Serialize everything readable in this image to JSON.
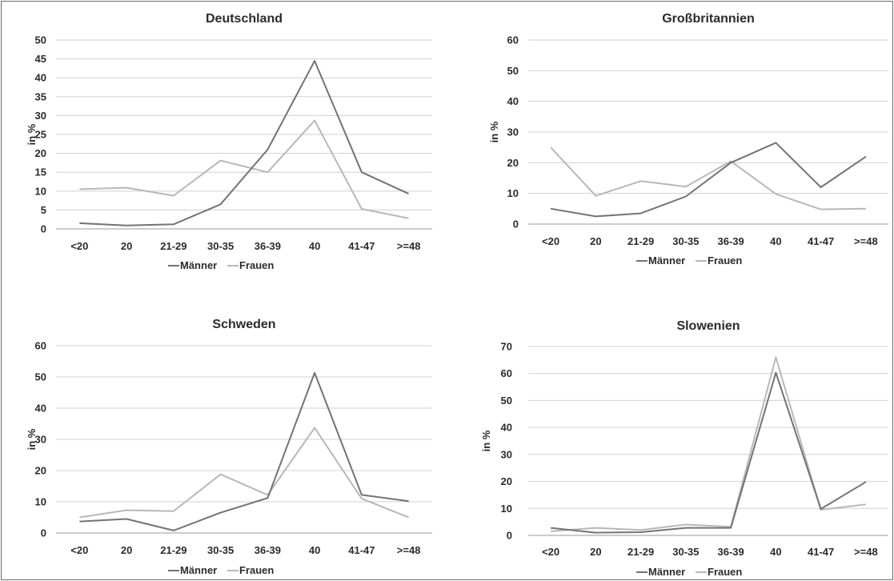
{
  "colors": {
    "maenner": "#737373",
    "frauen": "#b8b8b8",
    "grid": "#d0d0d0"
  },
  "chart_data": [
    {
      "type": "line",
      "title": "Deutschland",
      "ylabel": "in %",
      "categories": [
        "<20",
        "20",
        "21-29",
        "30-35",
        "36-39",
        "40",
        "41-47",
        ">=48"
      ],
      "ylim": [
        0,
        50
      ],
      "yticks": [
        "0",
        "5",
        "10",
        "15",
        "20",
        "25",
        "30",
        "35",
        "40",
        "45",
        "50"
      ],
      "legend": "bottom",
      "series": [
        {
          "name": "Männer",
          "values": [
            1.5,
            0.9,
            1.2,
            6.5,
            21,
            44.5,
            15,
            9.3
          ]
        },
        {
          "name": "Frauen",
          "values": [
            10.5,
            10.9,
            8.8,
            18.1,
            15,
            28.7,
            5.3,
            2.8
          ]
        }
      ]
    },
    {
      "type": "line",
      "title": "Großbritannien",
      "ylabel": "in %",
      "categories": [
        "<20",
        "20",
        "21-29",
        "30-35",
        "36-39",
        "40",
        "41-47",
        ">=48"
      ],
      "ylim": [
        0,
        60
      ],
      "yticks": [
        "0",
        "10",
        "20",
        "30",
        "40",
        "50",
        "60"
      ],
      "legend": "bottom",
      "series": [
        {
          "name": "Männer",
          "values": [
            5,
            2.5,
            3.5,
            9,
            20,
            26.5,
            12,
            22
          ]
        },
        {
          "name": "Frauen",
          "values": [
            25,
            9.2,
            14,
            12.2,
            20.5,
            9.8,
            4.8,
            5
          ]
        }
      ]
    },
    {
      "type": "line",
      "title": "Schweden",
      "ylabel": "in %",
      "categories": [
        "<20",
        "20",
        "21-29",
        "30-35",
        "36-39",
        "40",
        "41-47",
        ">=48"
      ],
      "ylim": [
        0,
        60
      ],
      "yticks": [
        "0",
        "10",
        "20",
        "30",
        "40",
        "50",
        "60"
      ],
      "legend": "bottom",
      "series": [
        {
          "name": "Männer",
          "values": [
            3.7,
            4.5,
            0.8,
            6.5,
            11.2,
            51.3,
            12.2,
            10.2
          ]
        },
        {
          "name": "Frauen",
          "values": [
            5,
            7.3,
            7,
            18.8,
            12.2,
            33.7,
            11,
            5
          ]
        }
      ]
    },
    {
      "type": "line",
      "title": "Slowenien",
      "ylabel": "in %",
      "categories": [
        "<20",
        "20",
        "21-29",
        "30-35",
        "36-39",
        "40",
        "41-47",
        ">=48"
      ],
      "ylim": [
        0,
        70
      ],
      "yticks": [
        "0",
        "10",
        "20",
        "30",
        "40",
        "50",
        "60",
        "70"
      ],
      "legend": "bottom",
      "series": [
        {
          "name": "Männer",
          "values": [
            2.8,
            1,
            1.2,
            2.8,
            2.8,
            60.3,
            9.8,
            19.8
          ]
        },
        {
          "name": "Frauen",
          "values": [
            1.5,
            2.8,
            2,
            4,
            3.2,
            66,
            9.5,
            11.5
          ]
        }
      ]
    }
  ]
}
